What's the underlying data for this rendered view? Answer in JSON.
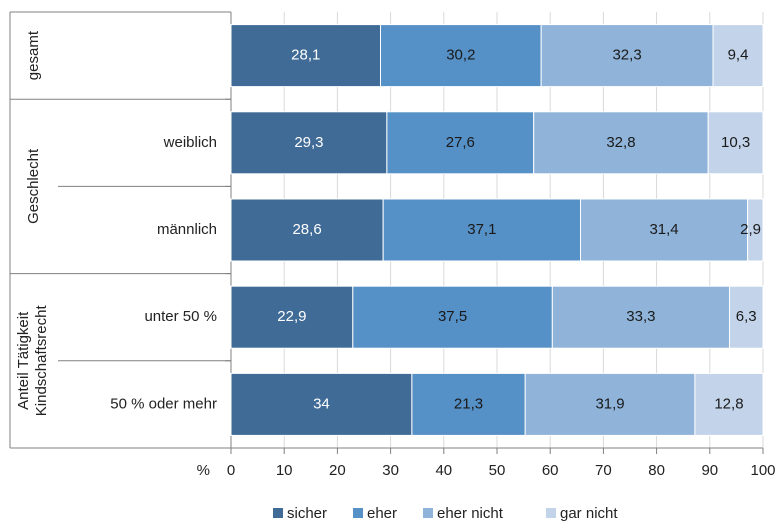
{
  "chart_data": {
    "type": "bar",
    "orientation": "horizontal",
    "stacked": true,
    "groups": [
      {
        "label": "gesamt",
        "categories": [
          ""
        ]
      },
      {
        "label": "Geschlecht",
        "categories": [
          "weiblich",
          "männlich"
        ]
      },
      {
        "label_lines": [
          "Anteil Tätigkeit",
          "Kindschaftsrecht"
        ],
        "categories": [
          "unter 50 %",
          "50 % oder mehr"
        ]
      }
    ],
    "categories": [
      "gesamt",
      "weiblich",
      "männlich",
      "unter 50 %",
      "50 % oder mehr"
    ],
    "series": [
      {
        "name": "sicher",
        "values": [
          28.1,
          29.3,
          28.6,
          22.9,
          34
        ],
        "labels": [
          "28,1",
          "29,3",
          "28,6",
          "22,9",
          "34"
        ],
        "color": "#3f6b96",
        "label_color": "#ffffff"
      },
      {
        "name": "eher",
        "values": [
          30.2,
          27.6,
          37.1,
          37.5,
          21.3
        ],
        "labels": [
          "30,2",
          "27,6",
          "37,1",
          "37,5",
          "21,3"
        ],
        "color": "#5590c6",
        "label_color": "#1a1a1a"
      },
      {
        "name": "eher nicht",
        "values": [
          32.3,
          32.8,
          31.4,
          33.3,
          31.9
        ],
        "labels": [
          "32,3",
          "32,8",
          "31,4",
          "33,3",
          "31,9"
        ],
        "color": "#8fb3d9",
        "label_color": "#1a1a1a"
      },
      {
        "name": "gar nicht",
        "values": [
          9.4,
          10.3,
          2.9,
          6.3,
          12.8
        ],
        "labels": [
          "9,4",
          "10,3",
          "2,9",
          "6,3",
          "12,8"
        ],
        "color": "#c3d4ea",
        "label_color": "#1a1a1a"
      }
    ],
    "xlim": [
      0,
      100
    ],
    "xticks": [
      0,
      10,
      20,
      30,
      40,
      50,
      60,
      70,
      80,
      90,
      100
    ],
    "xlabel": "%",
    "grid": true,
    "legend_position": "bottom"
  }
}
